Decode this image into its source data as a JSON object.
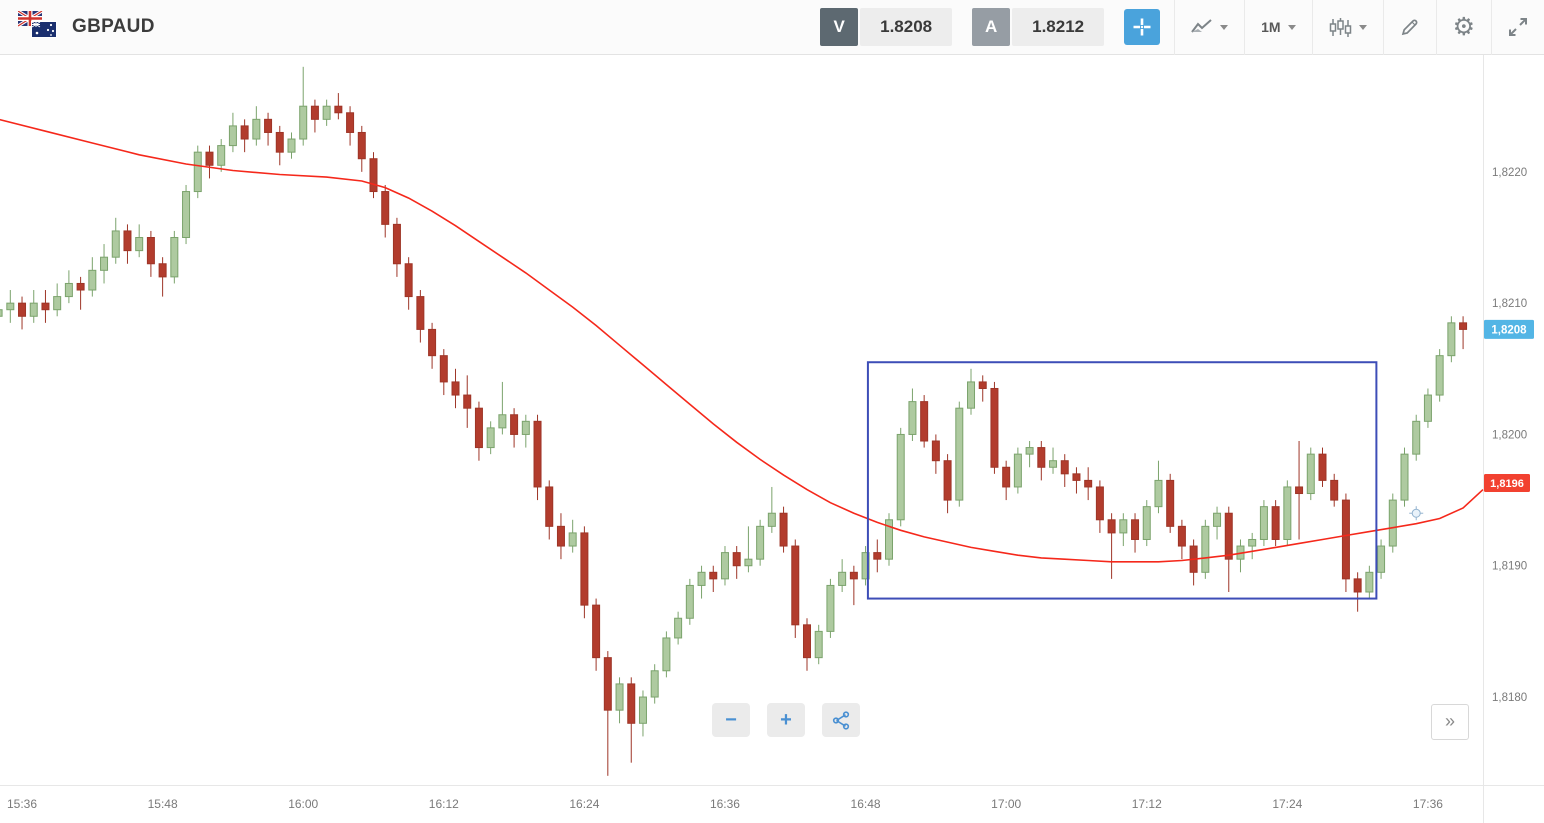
{
  "header": {
    "symbol": "GBPAUD",
    "sell": {
      "label": "V",
      "price": "1.8208"
    },
    "buy": {
      "label": "A",
      "price": "1.8212"
    },
    "timeframe": "1M"
  },
  "controls": {
    "zoom_out": "−",
    "zoom_in": "+",
    "more": "»"
  },
  "icons": {
    "gear": "⚙"
  },
  "colors": {
    "up_fill": "#aecaa0",
    "up_stroke": "#7ba36c",
    "down_fill": "#b23c2d",
    "down_stroke": "#9e3527",
    "ma_line": "#f5281b",
    "rectangle": "#3d4db7",
    "last_price_badge": "#53b5e5",
    "ma_price_badge": "#f24130",
    "accent_blue": "#4aa3dc"
  },
  "chart_data": {
    "type": "candlestick",
    "title": "GBPAUD 1-minute candlestick chart",
    "symbol": "GBPAUD",
    "interval": "1M",
    "start_time": "15:34",
    "interval_minutes": 1,
    "x_domain": [
      0.12,
      126.7
    ],
    "y_domain": [
      1.81733,
      1.82289
    ],
    "grid": "off",
    "y_axis": {
      "labels": [
        "1,8220",
        "1,8210",
        "1,8200",
        "1,8190",
        "1,8180"
      ],
      "values": [
        1.822,
        1.821,
        1.82,
        1.819,
        1.818
      ]
    },
    "x_axis": {
      "labels": [
        "15:36",
        "15:48",
        "16:00",
        "16:12",
        "16:24",
        "16:36",
        "16:48",
        "17:00",
        "17:12",
        "17:24",
        "17:36"
      ],
      "t": [
        2,
        14,
        26,
        38,
        50,
        62,
        74,
        86,
        98,
        110,
        122
      ]
    },
    "candles": [
      [
        1.8209,
        1.82105,
        1.82075,
        1.82095
      ],
      [
        1.82095,
        1.8211,
        1.82085,
        1.821
      ],
      [
        1.821,
        1.82105,
        1.8208,
        1.8209
      ],
      [
        1.8209,
        1.8211,
        1.82085,
        1.821
      ],
      [
        1.821,
        1.8211,
        1.82085,
        1.82095
      ],
      [
        1.82095,
        1.82115,
        1.8209,
        1.82105
      ],
      [
        1.82105,
        1.82125,
        1.821,
        1.82115
      ],
      [
        1.82115,
        1.8212,
        1.82095,
        1.8211
      ],
      [
        1.8211,
        1.82135,
        1.82105,
        1.82125
      ],
      [
        1.82125,
        1.82145,
        1.82115,
        1.82135
      ],
      [
        1.82135,
        1.82165,
        1.8213,
        1.82155
      ],
      [
        1.82155,
        1.8216,
        1.8213,
        1.8214
      ],
      [
        1.8214,
        1.8216,
        1.82135,
        1.8215
      ],
      [
        1.8215,
        1.82155,
        1.8212,
        1.8213
      ],
      [
        1.8213,
        1.82135,
        1.82105,
        1.8212
      ],
      [
        1.8212,
        1.82155,
        1.82115,
        1.8215
      ],
      [
        1.8215,
        1.8219,
        1.82145,
        1.82185
      ],
      [
        1.82185,
        1.8222,
        1.8218,
        1.82215
      ],
      [
        1.82215,
        1.8222,
        1.82195,
        1.82205
      ],
      [
        1.82205,
        1.82225,
        1.822,
        1.8222
      ],
      [
        1.8222,
        1.82245,
        1.82215,
        1.82235
      ],
      [
        1.82235,
        1.8224,
        1.82215,
        1.82225
      ],
      [
        1.82225,
        1.8225,
        1.8222,
        1.8224
      ],
      [
        1.8224,
        1.82245,
        1.8222,
        1.8223
      ],
      [
        1.8223,
        1.82235,
        1.82205,
        1.82215
      ],
      [
        1.82215,
        1.8223,
        1.8221,
        1.82225
      ],
      [
        1.82225,
        1.8228,
        1.8222,
        1.8225
      ],
      [
        1.8225,
        1.82255,
        1.8223,
        1.8224
      ],
      [
        1.8224,
        1.82255,
        1.82235,
        1.8225
      ],
      [
        1.8225,
        1.8226,
        1.8224,
        1.82245
      ],
      [
        1.82245,
        1.8225,
        1.8222,
        1.8223
      ],
      [
        1.8223,
        1.82235,
        1.822,
        1.8221
      ],
      [
        1.8221,
        1.82215,
        1.8218,
        1.82185
      ],
      [
        1.82185,
        1.8219,
        1.8215,
        1.8216
      ],
      [
        1.8216,
        1.82165,
        1.8212,
        1.8213
      ],
      [
        1.8213,
        1.82135,
        1.82095,
        1.82105
      ],
      [
        1.82105,
        1.8211,
        1.8207,
        1.8208
      ],
      [
        1.8208,
        1.82085,
        1.8205,
        1.8206
      ],
      [
        1.8206,
        1.82065,
        1.8203,
        1.8204
      ],
      [
        1.8204,
        1.8205,
        1.8202,
        1.8203
      ],
      [
        1.8203,
        1.82045,
        1.82005,
        1.8202
      ],
      [
        1.8202,
        1.82025,
        1.8198,
        1.8199
      ],
      [
        1.8199,
        1.8201,
        1.81985,
        1.82005
      ],
      [
        1.82005,
        1.8204,
        1.82,
        1.82015
      ],
      [
        1.82015,
        1.8202,
        1.8199,
        1.82
      ],
      [
        1.82,
        1.82015,
        1.8199,
        1.8201
      ],
      [
        1.8201,
        1.82015,
        1.8195,
        1.8196
      ],
      [
        1.8196,
        1.81965,
        1.8192,
        1.8193
      ],
      [
        1.8193,
        1.8194,
        1.81905,
        1.81915
      ],
      [
        1.81915,
        1.81935,
        1.8191,
        1.81925
      ],
      [
        1.81925,
        1.8193,
        1.8186,
        1.8187
      ],
      [
        1.8187,
        1.81875,
        1.8182,
        1.8183
      ],
      [
        1.8183,
        1.81835,
        1.8174,
        1.8179
      ],
      [
        1.8179,
        1.81815,
        1.8178,
        1.8181
      ],
      [
        1.8181,
        1.81815,
        1.8175,
        1.8178
      ],
      [
        1.8178,
        1.81805,
        1.8177,
        1.818
      ],
      [
        1.818,
        1.81825,
        1.81795,
        1.8182
      ],
      [
        1.8182,
        1.8185,
        1.81815,
        1.81845
      ],
      [
        1.81845,
        1.81865,
        1.8184,
        1.8186
      ],
      [
        1.8186,
        1.8189,
        1.81855,
        1.81885
      ],
      [
        1.81885,
        1.819,
        1.81875,
        1.81895
      ],
      [
        1.81895,
        1.819,
        1.8188,
        1.8189
      ],
      [
        1.8189,
        1.81915,
        1.81885,
        1.8191
      ],
      [
        1.8191,
        1.81915,
        1.8189,
        1.819
      ],
      [
        1.819,
        1.8193,
        1.81895,
        1.81905
      ],
      [
        1.81905,
        1.81935,
        1.819,
        1.8193
      ],
      [
        1.8193,
        1.8196,
        1.81925,
        1.8194
      ],
      [
        1.8194,
        1.81945,
        1.8191,
        1.81915
      ],
      [
        1.81915,
        1.8192,
        1.81845,
        1.81855
      ],
      [
        1.81855,
        1.8186,
        1.8182,
        1.8183
      ],
      [
        1.8183,
        1.81855,
        1.81825,
        1.8185
      ],
      [
        1.8185,
        1.8189,
        1.81845,
        1.81885
      ],
      [
        1.81885,
        1.81905,
        1.8188,
        1.81895
      ],
      [
        1.81895,
        1.819,
        1.8187,
        1.8189
      ],
      [
        1.8189,
        1.81915,
        1.81885,
        1.8191
      ],
      [
        1.8191,
        1.8192,
        1.81895,
        1.81905
      ],
      [
        1.81905,
        1.8194,
        1.819,
        1.81935
      ],
      [
        1.81935,
        1.82005,
        1.8193,
        1.82
      ],
      [
        1.82,
        1.82035,
        1.81995,
        1.82025
      ],
      [
        1.82025,
        1.8203,
        1.8199,
        1.81995
      ],
      [
        1.81995,
        1.82,
        1.8197,
        1.8198
      ],
      [
        1.8198,
        1.81985,
        1.8194,
        1.8195
      ],
      [
        1.8195,
        1.82025,
        1.81945,
        1.8202
      ],
      [
        1.8202,
        1.8205,
        1.82015,
        1.8204
      ],
      [
        1.8204,
        1.82045,
        1.82025,
        1.82035
      ],
      [
        1.82035,
        1.8204,
        1.8197,
        1.81975
      ],
      [
        1.81975,
        1.8198,
        1.8195,
        1.8196
      ],
      [
        1.8196,
        1.8199,
        1.81955,
        1.81985
      ],
      [
        1.81985,
        1.81995,
        1.81975,
        1.8199
      ],
      [
        1.8199,
        1.81995,
        1.81965,
        1.81975
      ],
      [
        1.81975,
        1.8199,
        1.8197,
        1.8198
      ],
      [
        1.8198,
        1.81985,
        1.8196,
        1.8197
      ],
      [
        1.8197,
        1.81975,
        1.81955,
        1.81965
      ],
      [
        1.81965,
        1.81975,
        1.8195,
        1.8196
      ],
      [
        1.8196,
        1.81965,
        1.81925,
        1.81935
      ],
      [
        1.81935,
        1.8194,
        1.8189,
        1.81925
      ],
      [
        1.81925,
        1.8194,
        1.81915,
        1.81935
      ],
      [
        1.81935,
        1.8194,
        1.8191,
        1.8192
      ],
      [
        1.8192,
        1.8195,
        1.81915,
        1.81945
      ],
      [
        1.81945,
        1.8198,
        1.8194,
        1.81965
      ],
      [
        1.81965,
        1.8197,
        1.81925,
        1.8193
      ],
      [
        1.8193,
        1.81935,
        1.81905,
        1.81915
      ],
      [
        1.81915,
        1.8192,
        1.81885,
        1.81895
      ],
      [
        1.81895,
        1.81935,
        1.8189,
        1.8193
      ],
      [
        1.8193,
        1.81945,
        1.8192,
        1.8194
      ],
      [
        1.8194,
        1.81945,
        1.8188,
        1.81905
      ],
      [
        1.81905,
        1.8192,
        1.81895,
        1.81915
      ],
      [
        1.81915,
        1.81925,
        1.81905,
        1.8192
      ],
      [
        1.8192,
        1.8195,
        1.81915,
        1.81945
      ],
      [
        1.81945,
        1.8195,
        1.81915,
        1.8192
      ],
      [
        1.8192,
        1.81965,
        1.81915,
        1.8196
      ],
      [
        1.8196,
        1.81995,
        1.8192,
        1.81955
      ],
      [
        1.81955,
        1.8199,
        1.8195,
        1.81985
      ],
      [
        1.81985,
        1.8199,
        1.8196,
        1.81965
      ],
      [
        1.81965,
        1.8197,
        1.81945,
        1.8195
      ],
      [
        1.8195,
        1.81955,
        1.8188,
        1.8189
      ],
      [
        1.8189,
        1.81895,
        1.81865,
        1.8188
      ],
      [
        1.8188,
        1.819,
        1.81875,
        1.81895
      ],
      [
        1.81895,
        1.8192,
        1.8189,
        1.81915
      ],
      [
        1.81915,
        1.81955,
        1.8191,
        1.8195
      ],
      [
        1.8195,
        1.8199,
        1.81945,
        1.81985
      ],
      [
        1.81985,
        1.82015,
        1.8198,
        1.8201
      ],
      [
        1.8201,
        1.82035,
        1.82005,
        1.8203
      ],
      [
        1.8203,
        1.82065,
        1.82025,
        1.8206
      ],
      [
        1.8206,
        1.8209,
        1.82055,
        1.82085
      ],
      [
        1.82085,
        1.8209,
        1.82065,
        1.8208
      ]
    ],
    "ma": [
      [
        0,
        1.8224
      ],
      [
        4,
        1.82231
      ],
      [
        8,
        1.82222
      ],
      [
        12,
        1.82213
      ],
      [
        16,
        1.82206
      ],
      [
        20,
        1.82201
      ],
      [
        24,
        1.82198
      ],
      [
        28,
        1.82196
      ],
      [
        31,
        1.82193
      ],
      [
        33,
        1.82188
      ],
      [
        35,
        1.8218
      ],
      [
        37,
        1.8217
      ],
      [
        39,
        1.82159
      ],
      [
        41,
        1.82147
      ],
      [
        43,
        1.82135
      ],
      [
        45,
        1.82123
      ],
      [
        47,
        1.8211
      ],
      [
        49,
        1.82097
      ],
      [
        51,
        1.82083
      ],
      [
        53,
        1.82068
      ],
      [
        55,
        1.82053
      ],
      [
        57,
        1.82038
      ],
      [
        59,
        1.82023
      ],
      [
        61,
        1.82008
      ],
      [
        63,
        1.81994
      ],
      [
        65,
        1.81981
      ],
      [
        67,
        1.81969
      ],
      [
        69,
        1.81958
      ],
      [
        71,
        1.81948
      ],
      [
        73,
        1.8194
      ],
      [
        75,
        1.81933
      ],
      [
        77,
        1.81927
      ],
      [
        79,
        1.81922
      ],
      [
        81,
        1.81918
      ],
      [
        83,
        1.81914
      ],
      [
        85,
        1.81911
      ],
      [
        87,
        1.81908
      ],
      [
        89,
        1.81906
      ],
      [
        91,
        1.81905
      ],
      [
        93,
        1.81904
      ],
      [
        95,
        1.81903
      ],
      [
        97,
        1.81903
      ],
      [
        99,
        1.81903
      ],
      [
        101,
        1.81904
      ],
      [
        103,
        1.81906
      ],
      [
        105,
        1.81908
      ],
      [
        107,
        1.81911
      ],
      [
        109,
        1.81914
      ],
      [
        111,
        1.81917
      ],
      [
        113,
        1.8192
      ],
      [
        115,
        1.81923
      ],
      [
        117,
        1.81926
      ],
      [
        119,
        1.81929
      ],
      [
        121,
        1.81932
      ],
      [
        123,
        1.81936
      ],
      [
        125,
        1.81944
      ],
      [
        126.7,
        1.81958
      ]
    ],
    "rectangle": {
      "t_start": 74.2,
      "t_end": 117.6,
      "price_low": 1.81875,
      "price_high": 1.82055
    },
    "last_price": {
      "label": "1,8208",
      "value": 1.8208
    },
    "ma_price": {
      "label": "1,8196",
      "value": 1.81963
    },
    "marker": {
      "t": 121,
      "price": 1.8194
    }
  }
}
